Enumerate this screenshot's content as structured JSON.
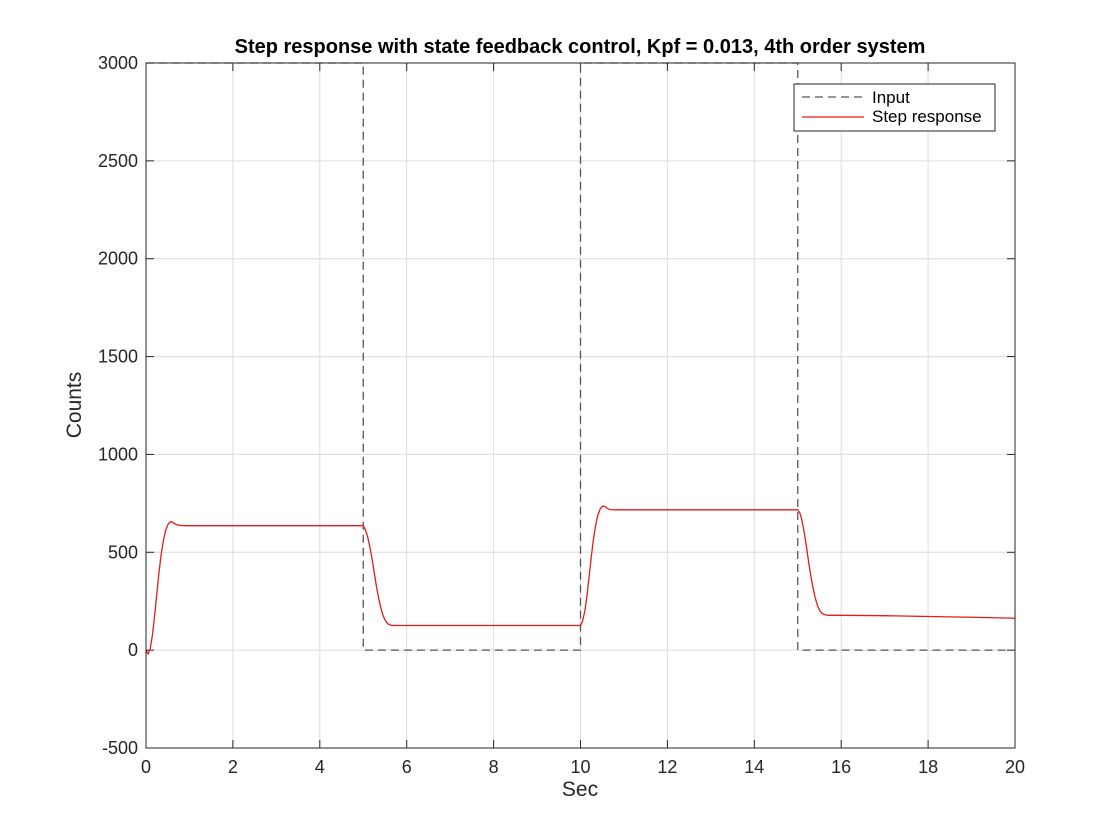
{
  "chart_data": {
    "type": "line",
    "title": "Step response with state feedback control, Kpf = 0.013, 4th order system",
    "xlabel": "Sec",
    "ylabel": "Counts",
    "xlim": [
      0,
      20
    ],
    "ylim": [
      -500,
      3000
    ],
    "xticks": [
      0,
      2,
      4,
      6,
      8,
      10,
      12,
      14,
      16,
      18,
      20
    ],
    "yticks": [
      -500,
      0,
      500,
      1000,
      1500,
      2000,
      2500,
      3000
    ],
    "grid": true,
    "legend_position": "top-right",
    "series": [
      {
        "name": "Input",
        "color": "#555555",
        "style": "dashed",
        "x": [
          0,
          5,
          5,
          10,
          10,
          15,
          15,
          20
        ],
        "y": [
          3000,
          3000,
          0,
          0,
          3000,
          3000,
          0,
          0
        ]
      },
      {
        "name": "Step response",
        "color": "#e41a1c",
        "style": "solid",
        "x": [
          0,
          0.05,
          0.1,
          0.15,
          0.2,
          0.25,
          0.3,
          0.35,
          0.4,
          0.45,
          0.5,
          0.55,
          0.6,
          0.65,
          0.7,
          0.8,
          0.9,
          1.0,
          1.5,
          2,
          3,
          4,
          4.9,
          5.0,
          5.05,
          5.1,
          5.15,
          5.2,
          5.25,
          5.3,
          5.35,
          5.4,
          5.45,
          5.5,
          5.55,
          5.6,
          5.65,
          5.7,
          5.8,
          5.9,
          6.0,
          7,
          8,
          9,
          9.9,
          10.0,
          10.05,
          10.1,
          10.15,
          10.2,
          10.25,
          10.3,
          10.35,
          10.4,
          10.45,
          10.5,
          10.55,
          10.6,
          10.65,
          10.7,
          10.8,
          10.9,
          11.0,
          12,
          13,
          14,
          14.9,
          15.0,
          15.05,
          15.1,
          15.15,
          15.2,
          15.25,
          15.3,
          15.35,
          15.4,
          15.45,
          15.5,
          15.55,
          15.6,
          15.65,
          15.7,
          15.8,
          15.9,
          16.0,
          17,
          18,
          19,
          20
        ],
        "y": [
          0,
          -20,
          10,
          80,
          180,
          290,
          400,
          490,
          560,
          610,
          640,
          655,
          655,
          648,
          641,
          637,
          636,
          636,
          636,
          636,
          636,
          636,
          636,
          636,
          615,
          580,
          530,
          470,
          400,
          330,
          270,
          220,
          180,
          155,
          138,
          130,
          127,
          126,
          126,
          126,
          126,
          126,
          126,
          126,
          126,
          126,
          150,
          200,
          280,
          380,
          480,
          570,
          640,
          690,
          720,
          735,
          735,
          727,
          720,
          718,
          717,
          717,
          717,
          717,
          717,
          717,
          717,
          717,
          700,
          660,
          600,
          530,
          450,
          380,
          320,
          270,
          230,
          205,
          190,
          183,
          180,
          178,
          178,
          178,
          178,
          176,
          172,
          168,
          163
        ]
      }
    ]
  }
}
